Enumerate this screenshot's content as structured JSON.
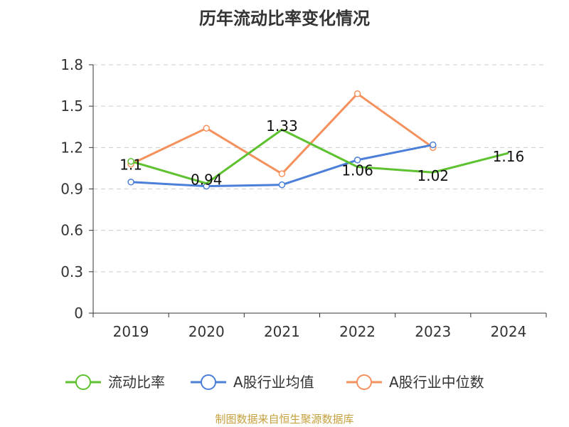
{
  "chart_data": {
    "type": "line",
    "title": "历年流动比率变化情况",
    "categories": [
      "2019",
      "2020",
      "2021",
      "2022",
      "2023",
      "2024"
    ],
    "ylim": [
      0,
      1.8
    ],
    "yticks": [
      "0",
      "0.3",
      "0.6",
      "0.9",
      "1.2",
      "1.5",
      "1.8"
    ],
    "grid": true,
    "legend_position": "bottom",
    "series": [
      {
        "name": "流动比率",
        "color": "#5ec12f",
        "values": [
          1.1,
          0.94,
          1.33,
          1.06,
          1.02,
          1.16
        ],
        "labels": [
          "1.1",
          "0.94",
          "1.33",
          "1.06",
          "1.02",
          "1.16"
        ]
      },
      {
        "name": "A股行业均值",
        "color": "#4b7fd8",
        "values": [
          0.95,
          0.92,
          0.93,
          1.11,
          1.22,
          null
        ]
      },
      {
        "name": "A股行业中位数",
        "color": "#f5915c",
        "values": [
          1.08,
          1.34,
          1.01,
          1.59,
          1.2,
          null
        ]
      }
    ]
  },
  "source": "制图数据来自恒生聚源数据库"
}
